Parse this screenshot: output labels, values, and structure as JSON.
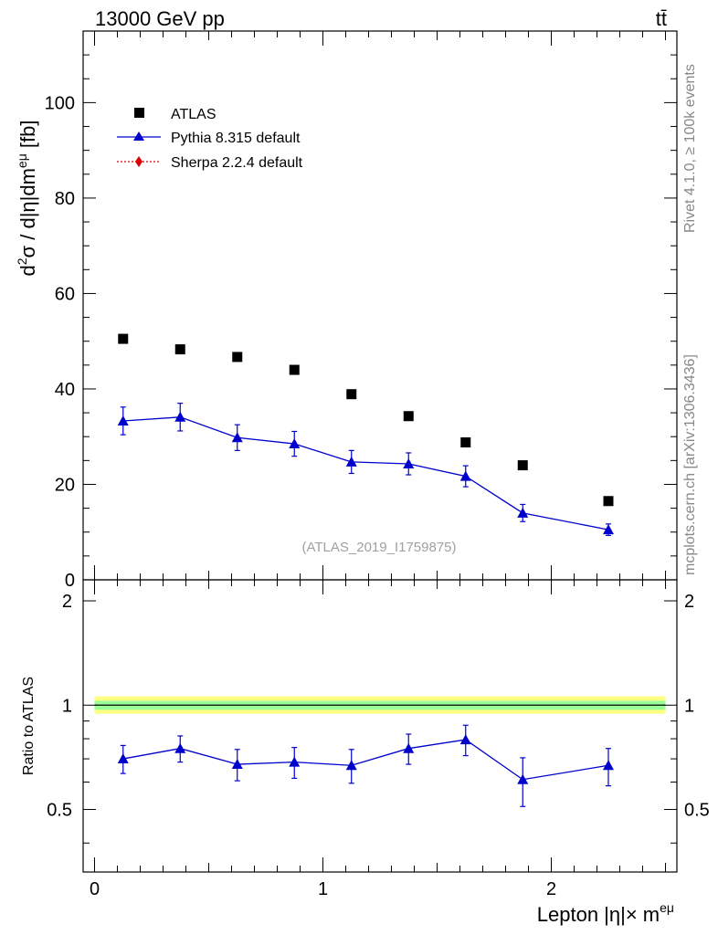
{
  "header": {
    "left": "13000 GeV pp",
    "right": "tt̄"
  },
  "side_labels": {
    "rivet": "Rivet 4.1.0, ≥ 100k events",
    "mcplots": "mcplots.cern.ch [arXiv:1306.3436]"
  },
  "watermark": "(ATLAS_2019_I1759875)",
  "legend": [
    {
      "label": "ATLAS",
      "marker": "square",
      "color": "#000000"
    },
    {
      "label": "Pythia 8.315 default",
      "marker": "triangle",
      "color": "#0000cc"
    },
    {
      "label": "Sherpa 2.2.4 default",
      "marker": "diamond",
      "color": "#dd0000"
    }
  ],
  "colors": {
    "atlas": "#000000",
    "pythia": "#0000cc",
    "sherpa": "#dd0000",
    "band_inner": "#99ff99",
    "band_outer": "#ffff80"
  },
  "chart_data": [
    {
      "type": "scatter",
      "panel": "main",
      "ylabel_parts": [
        "d",
        "2",
        "σ / d|η|dm",
        "eμ",
        " [fb]"
      ],
      "ylim": [
        0,
        115
      ],
      "yticks": [
        0,
        20,
        40,
        60,
        80,
        100
      ],
      "xlim": [
        -0.05,
        2.55
      ],
      "x": [
        0.125,
        0.375,
        0.625,
        0.875,
        1.125,
        1.375,
        1.625,
        1.875,
        2.25
      ],
      "series": [
        {
          "name": "ATLAS",
          "values": [
            50.5,
            48.3,
            46.7,
            44.0,
            38.9,
            34.3,
            28.8,
            24.0,
            16.5
          ]
        },
        {
          "name": "Pythia 8.315 default",
          "values": [
            33.3,
            34.1,
            29.8,
            28.5,
            24.7,
            24.3,
            21.7,
            14.0,
            10.5
          ],
          "errors": [
            2.9,
            2.9,
            2.7,
            2.6,
            2.4,
            2.3,
            2.2,
            1.8,
            1.2
          ]
        },
        {
          "name": "Sherpa 2.2.4 default",
          "values": []
        }
      ]
    },
    {
      "type": "line",
      "panel": "ratio",
      "ylabel": "Ratio to ATLAS",
      "ylim": [
        0.33,
        2.3
      ],
      "log_y": true,
      "yticks": [
        0.5,
        1,
        2
      ],
      "xlim": [
        -0.05,
        2.55
      ],
      "xticks": [
        0,
        1,
        2
      ],
      "xlabel_parts": [
        "Lepton |η|× m",
        "eμ"
      ],
      "x": [
        0.125,
        0.375,
        0.625,
        0.875,
        1.125,
        1.375,
        1.625,
        1.875,
        2.25
      ],
      "band": {
        "x_range": [
          0,
          2.5
        ],
        "inner": [
          0.97,
          1.03
        ],
        "outer": [
          0.945,
          1.06
        ]
      },
      "series": [
        {
          "name": "Pythia 8.315 default",
          "values": [
            0.7,
            0.75,
            0.675,
            0.685,
            0.67,
            0.75,
            0.795,
            0.61,
            0.67
          ],
          "err_up": [
            0.065,
            0.065,
            0.07,
            0.07,
            0.075,
            0.075,
            0.08,
            0.095,
            0.08
          ],
          "err_dn": [
            0.065,
            0.065,
            0.07,
            0.07,
            0.075,
            0.075,
            0.08,
            0.1,
            0.085
          ]
        }
      ]
    }
  ]
}
